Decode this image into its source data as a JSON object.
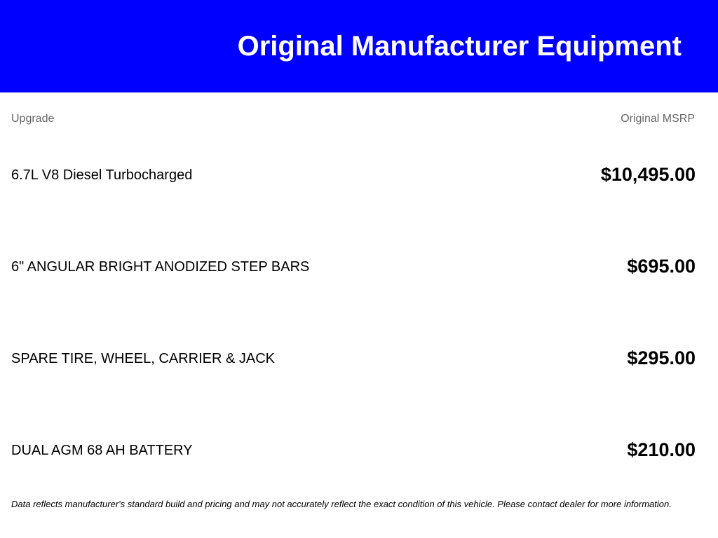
{
  "header": {
    "title": "Original Manufacturer Equipment",
    "background_color": "#0000ff"
  },
  "columns": {
    "upgrade": "Upgrade",
    "msrp": "Original MSRP"
  },
  "items": [
    {
      "name": "6.7L V8 Diesel Turbocharged",
      "price": "$10,495.00"
    },
    {
      "name": "6\" ANGULAR BRIGHT ANODIZED STEP BARS",
      "price": "$695.00"
    },
    {
      "name": "SPARE TIRE, WHEEL, CARRIER & JACK",
      "price": "$295.00"
    },
    {
      "name": "DUAL AGM 68 AH BATTERY",
      "price": "$210.00"
    }
  ],
  "footer": {
    "disclaimer": "Data reflects manufacturer's standard build and pricing and may not accurately reflect the exact condition of this vehicle. Please contact dealer for more information."
  }
}
